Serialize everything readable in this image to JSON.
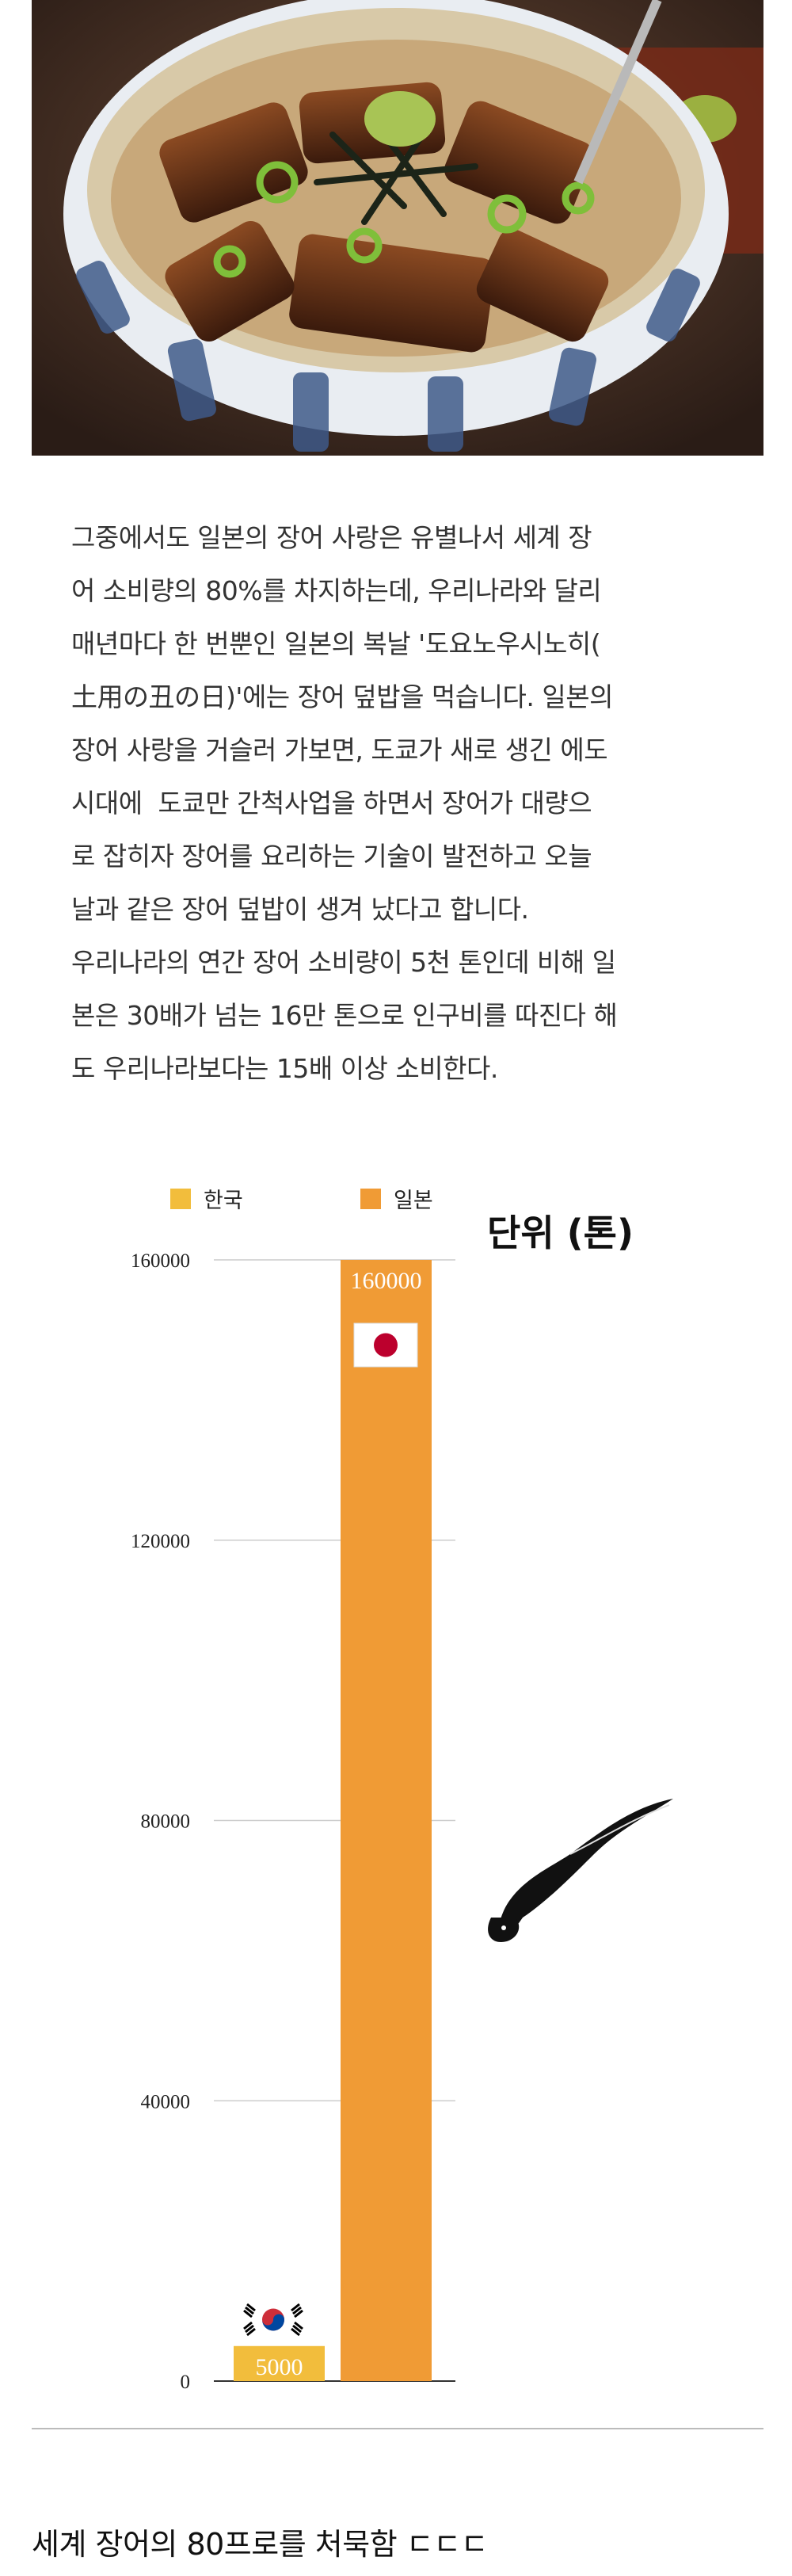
{
  "paragraph": {
    "lines": [
      "그중에서도 일본의 장어 사랑은 유별나서 세계 장",
      "어 소비량의 80%를 차지하는데, 우리나라와 달리",
      "매년마다 한 번뿐인 일본의 복날 '도요노우시노히(",
      "土用の丑の日)'에는 장어 덮밥을 먹습니다. 일본의",
      "장어 사랑을 거슬러 가보면, 도쿄가 새로 생긴 에도",
      "시대에  도쿄만 간척사업을 하면서 장어가 대량으",
      "로 잡히자 장어를 요리하는 기술이 발전하고 오늘",
      "날과 같은 장어 덮밥이 생겨 났다고 합니다.",
      "우리나라의 연간 장어 소비량이 5천 톤인데 비해 일",
      "본은 30배가 넘는 16만 톤으로 인구비를 따진다 해",
      "도 우리나라보다는 15배 이상 소비한다."
    ]
  },
  "chart_data": {
    "type": "bar",
    "categories": [
      "한국",
      "일본"
    ],
    "values": [
      5000,
      160000
    ],
    "data_labels": [
      "5000",
      "160000"
    ],
    "colors": [
      "#f2bd3c",
      "#f09b35"
    ],
    "unit_label": "단위 (톤)",
    "ylim": [
      0,
      160000
    ],
    "yticks": [
      "0",
      "40000",
      "80000",
      "120000",
      "160000"
    ],
    "ytick_values": [
      0,
      40000,
      80000,
      120000,
      160000
    ],
    "grid": true,
    "legend_position": "top"
  },
  "caption": "세계 장어의 80프로를 처묵함 ㄷㄷㄷ"
}
